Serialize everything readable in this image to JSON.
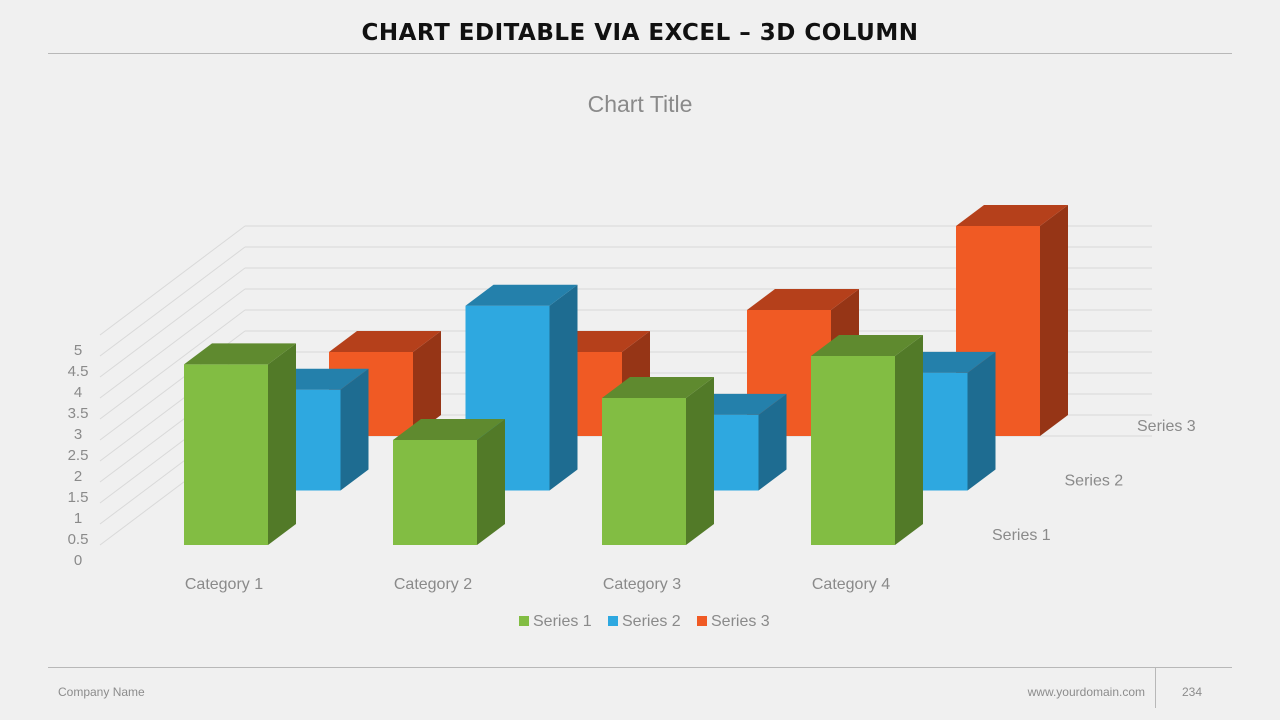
{
  "slide": {
    "title": "CHART EDITABLE VIA EXCEL – 3D COLUMN",
    "footer_company": "Company Name",
    "footer_domain": "www.yourdomain.com",
    "footer_page": "234"
  },
  "chart_data": {
    "type": "bar",
    "variant": "3d-column",
    "title": "Chart Title",
    "categories": [
      "Category 1",
      "Category 2",
      "Category 3",
      "Category 4"
    ],
    "series": [
      {
        "name": "Series 1",
        "values": [
          4.3,
          2.5,
          3.5,
          4.5
        ],
        "color": "#82bd43",
        "side_color": "#527a28",
        "top_color": "#5f8a2f"
      },
      {
        "name": "Series 2",
        "values": [
          2.4,
          4.4,
          1.8,
          2.8
        ],
        "color": "#2ea8e0",
        "side_color": "#1e6c91",
        "top_color": "#2480ab"
      },
      {
        "name": "Series 3",
        "values": [
          2.0,
          2.0,
          3.0,
          5.0
        ],
        "color": "#f05a24",
        "side_color": "#963516",
        "top_color": "#b5401b"
      }
    ],
    "yticks": [
      "0",
      "0.5",
      "1",
      "1.5",
      "2",
      "2.5",
      "3",
      "3.5",
      "4",
      "4.5",
      "5"
    ],
    "ylim": [
      0,
      5
    ],
    "grid": true,
    "legend": "bottom",
    "depth_axis_labels": [
      "Series 1",
      "Series 2",
      "Series 3"
    ]
  }
}
